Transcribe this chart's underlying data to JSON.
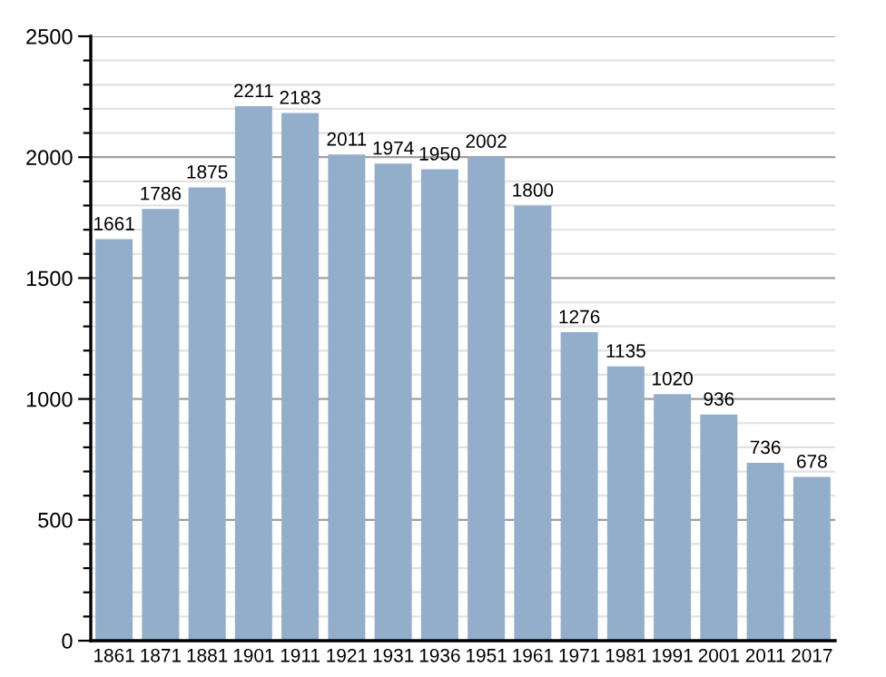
{
  "chart_data": {
    "type": "bar",
    "categories": [
      "1861",
      "1871",
      "1881",
      "1901",
      "1911",
      "1921",
      "1931",
      "1936",
      "1951",
      "1961",
      "1971",
      "1981",
      "1991",
      "2001",
      "2011",
      "2017"
    ],
    "values": [
      1661,
      1786,
      1875,
      2211,
      2183,
      2011,
      1974,
      1950,
      2002,
      1800,
      1276,
      1135,
      1020,
      936,
      736,
      678
    ],
    "color": "#93aecb",
    "ylim": [
      0,
      2500
    ],
    "yticks": [
      0,
      {
        "value": 100,
        "label": null
      },
      {
        "value": 200,
        "label": null
      },
      {
        "value": 300,
        "label": null
      },
      {
        "value": 400,
        "label": null
      },
      500,
      {
        "value": 600,
        "label": null
      },
      {
        "value": 700,
        "label": null
      },
      {
        "value": 800,
        "label": null
      },
      {
        "value": 900,
        "label": null
      },
      1000,
      {
        "value": 1100,
        "label": null
      },
      {
        "value": 1200,
        "label": null
      },
      {
        "value": 1300,
        "label": null
      },
      {
        "value": 1400,
        "label": null
      },
      1500,
      {
        "value": 1600,
        "label": null
      },
      {
        "value": 1700,
        "label": null
      },
      {
        "value": 1800,
        "label": null
      },
      {
        "value": 1900,
        "label": null
      },
      2000,
      {
        "value": 2100,
        "label": null
      },
      {
        "value": 2200,
        "label": null
      },
      {
        "value": 2300,
        "label": null
      },
      {
        "value": 2400,
        "label": null
      },
      2500
    ],
    "grid": "y",
    "data_labels": true
  }
}
